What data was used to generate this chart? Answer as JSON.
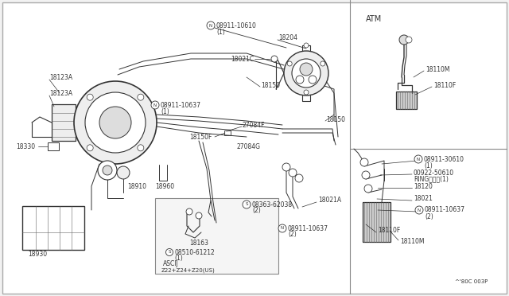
{
  "bg": "#f2f2f2",
  "fg": "#333333",
  "white": "#ffffff",
  "figsize": [
    6.4,
    3.72
  ],
  "dpi": 100,
  "note": "^'80C 003P",
  "atm_label": "ATM",
  "parts_main": {
    "N08911_10610": {
      "circle": "N",
      "num": "08911-10610",
      "sub": "(1)"
    },
    "18204": "18204",
    "18021C": "18021C",
    "18150_upper": "18150",
    "18150_lower": "18150",
    "N08911_10637_1": {
      "circle": "N",
      "num": "08911-10637",
      "sub": "(1)"
    },
    "18123A_upper": "18123A",
    "18123A_lower": "18123A",
    "27084F": "27084F",
    "18150F": "18150F",
    "27084G": "27084G",
    "18330": "18330",
    "18910": "18910",
    "18960": "18960",
    "18930": "18930",
    "S08363_62038": {
      "circle": "S",
      "num": "08363-62038",
      "sub": "(2)"
    },
    "N08911_10637_2": {
      "circle": "N",
      "num": "08911-10637",
      "sub": "(2)"
    },
    "18021A": "18021A",
    "18163": "18163",
    "S08510_61212": {
      "circle": "S",
      "num": "08510-61212",
      "sub": "(1)"
    },
    "ASCII": "ASCIJ",
    "Z22": "Z22+Z24+Z20(US)"
  },
  "parts_atm": {
    "18110M": "18110M",
    "18110F": "18110F"
  },
  "parts_lower_right": {
    "N08911_30610": {
      "circle": "N",
      "num": "08911-30610",
      "sub": "(1)"
    },
    "00922_50610": "00922-50610",
    "RING": "RINGリング(1)",
    "18120": "18120",
    "18021": "18021",
    "N08911_10637_lr": {
      "circle": "N",
      "num": "08911-10637",
      "sub": "(2)"
    },
    "18110F_lr": "18110F",
    "18110M_lr": "18110M"
  }
}
